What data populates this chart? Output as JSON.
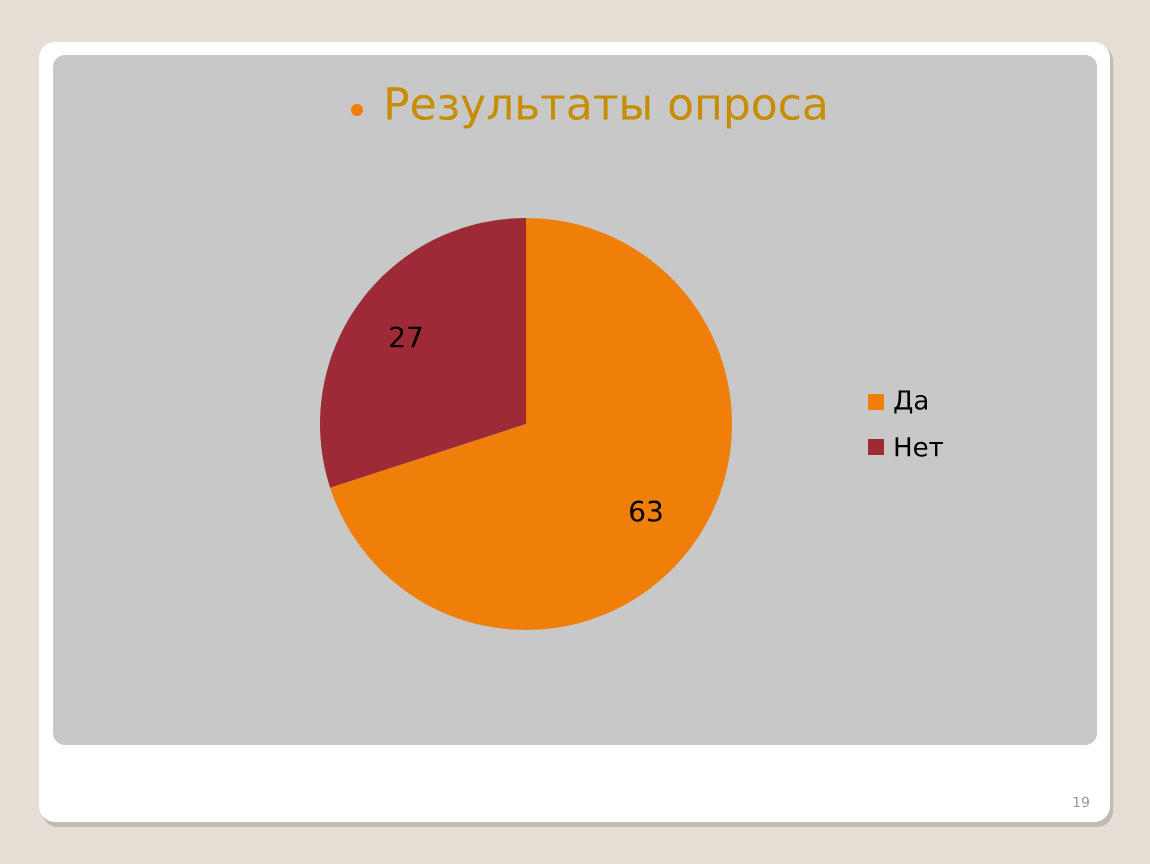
{
  "chart_data": {
    "type": "pie",
    "title": "Результаты опроса",
    "categories": [
      "Да",
      "Нет"
    ],
    "values": [
      63,
      27
    ],
    "colors": [
      "#f07f09",
      "#9e2a35"
    ],
    "data_labels": true,
    "legend": "right",
    "annotations": [
      "19"
    ]
  }
}
